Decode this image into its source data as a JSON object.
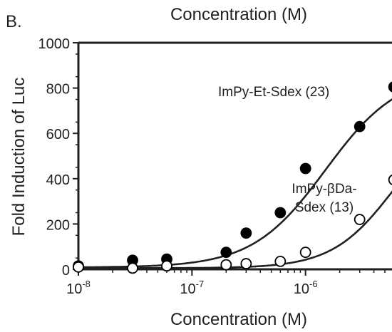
{
  "panel_label": "B.",
  "chart_data": {
    "type": "scatter",
    "top_title": "Concentration (M)",
    "xlabel": "Concentration (M)",
    "ylabel": "Fold Induction of Luc",
    "x_scale": "log",
    "xlim": [
      1e-08,
      6.5e-06
    ],
    "ylim": [
      0,
      1000
    ],
    "grid": false,
    "x_ticks": [
      {
        "value": 1e-08,
        "base": "10",
        "exp": "-8"
      },
      {
        "value": 1e-07,
        "base": "10",
        "exp": "-7"
      },
      {
        "value": 1e-06,
        "base": "10",
        "exp": "-6"
      }
    ],
    "y_ticks": [
      {
        "value": 0,
        "label": "0"
      },
      {
        "value": 200,
        "label": "200"
      },
      {
        "value": 400,
        "label": "400"
      },
      {
        "value": 600,
        "label": "600"
      },
      {
        "value": 800,
        "label": "800"
      },
      {
        "value": 1000,
        "label": "1000"
      }
    ],
    "series": [
      {
        "name": "ImPy-Et-Sdex (23)",
        "label_lines": [
          "ImPy-Et-Sdex (23)"
        ],
        "marker": "filled-circle",
        "color": "#000000",
        "x": [
          1e-08,
          3e-08,
          6e-08,
          2e-07,
          3e-07,
          6e-07,
          1e-06,
          3e-06,
          6e-06
        ],
        "y": [
          15,
          40,
          45,
          75,
          160,
          250,
          445,
          630,
          805
        ],
        "fit": {
          "bottom": 8,
          "top": 870,
          "ec50": 1.5e-06,
          "hill": 1.35
        }
      },
      {
        "name": "ImPy-βDa-Sdex (13)",
        "label_lines": [
          "ImPy-βDa-",
          "Sdex (13)"
        ],
        "marker": "open-circle",
        "color": "#000000",
        "x": [
          1e-08,
          3e-08,
          6e-08,
          2e-07,
          3e-07,
          6e-07,
          1e-06,
          3e-06,
          6e-06
        ],
        "y": [
          10,
          5,
          15,
          20,
          25,
          35,
          75,
          220,
          395
        ],
        "fit": {
          "bottom": 5,
          "top": 700,
          "ec50": 6e-06,
          "hill": 1.6
        }
      }
    ]
  }
}
